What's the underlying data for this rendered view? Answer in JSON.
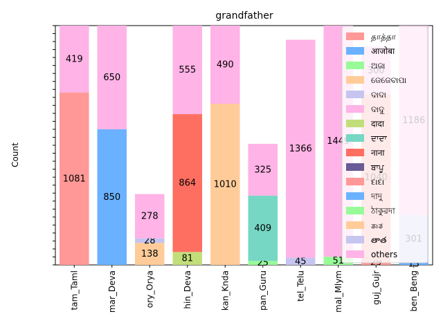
{
  "chart_data": {
    "type": "bar",
    "stacked": true,
    "title": "grandfather",
    "xlabel": "",
    "ylabel": "Count",
    "ylim": [
      0,
      1500
    ],
    "y_tick_labels_unreadable": true,
    "categories": [
      "tam_Taml",
      "mar_Deva",
      "ory_Orya",
      "hin_Deva",
      "kan_Knda",
      "pan_Guru",
      "tel_Telu",
      "mal_Mlym",
      "guj_Gujr",
      "ben_Beng"
    ],
    "legend_position": "upper right",
    "series": [
      {
        "name": "தாத்தா",
        "color": "#ff9896",
        "values": [
          1081,
          0,
          0,
          0,
          0,
          0,
          0,
          0,
          29,
          0
        ]
      },
      {
        "name": "आजोबा",
        "color": "#6ab2ff",
        "values": [
          0,
          850,
          0,
          0,
          0,
          0,
          0,
          0,
          0,
          13
        ]
      },
      {
        "name": "ଅଜା",
        "color": "#98fb98",
        "values": [
          0,
          0,
          0,
          0,
          0,
          25,
          0,
          51,
          0,
          0
        ]
      },
      {
        "name": "ଜେଜେବାପା",
        "color": "#ffcc99",
        "values": [
          0,
          0,
          138,
          0,
          1010,
          0,
          0,
          0,
          0,
          0
        ]
      },
      {
        "name": "ଦାଦା",
        "color": "#c5c5f0",
        "values": [
          0,
          0,
          28,
          0,
          0,
          0,
          45,
          0,
          0,
          301
        ]
      },
      {
        "name": "ଦାଦୁ",
        "color": "#ffb3e6",
        "values": [
          0,
          0,
          0,
          0,
          0,
          0,
          0,
          0,
          0,
          0
        ]
      },
      {
        "name": "दादा",
        "color": "#c2de7a",
        "values": [
          0,
          0,
          0,
          81,
          0,
          0,
          0,
          0,
          0,
          0
        ]
      },
      {
        "name": "ਦਾਦਾ",
        "color": "#76d7c4",
        "values": [
          0,
          0,
          0,
          0,
          0,
          409,
          0,
          0,
          0,
          0
        ]
      },
      {
        "name": "नाना",
        "color": "#ff6f61",
        "values": [
          0,
          0,
          0,
          864,
          0,
          0,
          0,
          0,
          0,
          0
        ]
      },
      {
        "name": "ਬਾਪੂ",
        "color": "#6a5a96",
        "values": [
          0,
          0,
          0,
          0,
          0,
          0,
          0,
          0,
          0,
          0
        ]
      },
      {
        "name": "દાદા",
        "color": "#ff9896",
        "values": [
          0,
          0,
          0,
          0,
          0,
          0,
          0,
          0,
          1040,
          0
        ]
      },
      {
        "name": "দাদু",
        "color": "#6ab2ff",
        "values": [
          0,
          0,
          0,
          0,
          0,
          0,
          0,
          0,
          0,
          0
        ]
      },
      {
        "name": "ঠাকুরদা",
        "color": "#98fb98",
        "values": [
          0,
          0,
          0,
          0,
          0,
          0,
          0,
          0,
          0,
          0
        ]
      },
      {
        "name": "ತಾತ",
        "color": "#ffcc99",
        "values": [
          0,
          0,
          0,
          0,
          0,
          0,
          0,
          0,
          0,
          0
        ]
      },
      {
        "name": "తాత",
        "color": "#c5c5f0",
        "values": [
          0,
          0,
          0,
          0,
          0,
          0,
          0,
          0,
          0,
          0
        ]
      },
      {
        "name": "others",
        "color": "#ffb3e6",
        "values": [
          419,
          650,
          278,
          555,
          490,
          325,
          1366,
          1449,
          300,
          1186
        ]
      }
    ],
    "data_labels": [
      {
        "category": "tam_Taml",
        "values": [
          1081,
          419
        ]
      },
      {
        "category": "mar_Deva",
        "values": [
          850,
          650
        ]
      },
      {
        "category": "ory_Orya",
        "values": [
          138,
          28,
          278
        ]
      },
      {
        "category": "hin_Deva",
        "values": [
          81,
          864,
          555
        ]
      },
      {
        "category": "kan_Knda",
        "values": [
          1010,
          490
        ]
      },
      {
        "category": "pan_Guru",
        "values": [
          409,
          25,
          325
        ]
      },
      {
        "category": "tel_Telu",
        "values": [
          45,
          1366
        ]
      },
      {
        "category": "mal_Mlym",
        "values": [
          51,
          1449
        ]
      },
      {
        "category": "guj_Gujr",
        "values": [
          29,
          1040,
          300
        ]
      },
      {
        "category": "ben_Beng",
        "values": [
          13,
          301,
          1186
        ]
      }
    ]
  }
}
